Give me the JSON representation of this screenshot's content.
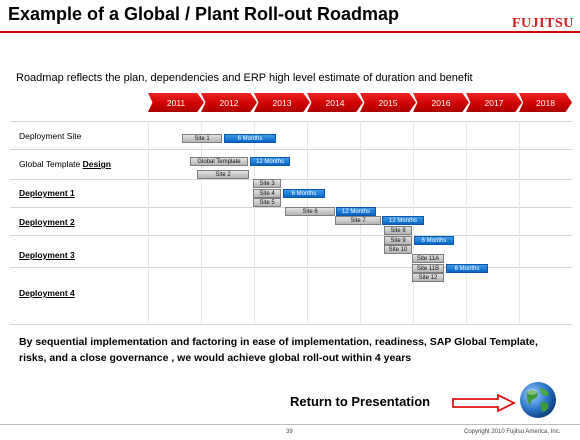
{
  "header": {
    "title": "Example of a Global / Plant Roll-out Roadmap",
    "logo_text": "FUJITSU",
    "accent_color": "#cc0000"
  },
  "subtitle": "Roadmap reflects the plan, dependencies and ERP high level estimate of duration and benefit",
  "years": [
    "2011",
    "2012",
    "2013",
    "2014",
    "2015",
    "2016",
    "2017",
    "2018"
  ],
  "rows": [
    {
      "label": "Deployment Site",
      "emphasis": ""
    },
    {
      "label": "Global Template ",
      "emphasis": "Design"
    },
    {
      "label": "Deployment 1",
      "emphasis": ""
    },
    {
      "label": "Deployment 2",
      "emphasis": ""
    },
    {
      "label": "Deployment 3",
      "emphasis": ""
    },
    {
      "label": "Deployment 4",
      "emphasis": ""
    }
  ],
  "bars": {
    "site1": "Site 1",
    "site1_duration": "6 Months",
    "global_template": "Global Template",
    "global_template_duration": "12 Months",
    "site2": "Site 2",
    "site3": "Site 3",
    "site4": "Site 4",
    "site4_duration": "6 Months",
    "site5": "Site 5",
    "site6": "Site 6",
    "site6_duration": "12 Months",
    "site7": "Site 7",
    "site7_duration": "12 Months",
    "site8": "Site 8",
    "site9": "Site 9",
    "site9_duration": "6 Months",
    "site10": "Site 10",
    "site11a": "Site 11A",
    "site11b": "Site 11B",
    "site11b_duration": "6 Months",
    "site12": "Site 12"
  },
  "statement": "By sequential implementation and factoring in ease of implementation, readiness, SAP Global Template, risks, and a close governance , we would achieve global roll-out within 4 years",
  "return_link": "Return to Presentation",
  "footer": {
    "page_number": "39",
    "copyright": "Copyright 2010 Fujitsu America, Inc."
  }
}
